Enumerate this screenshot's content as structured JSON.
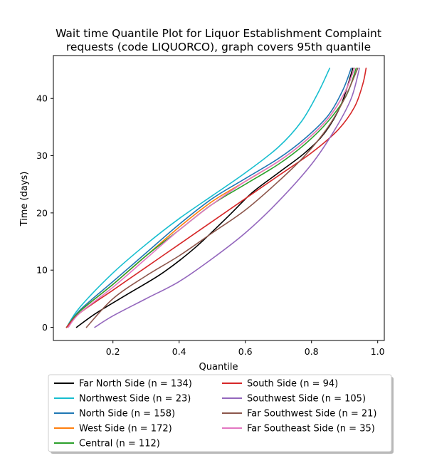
{
  "chart_data": {
    "type": "line",
    "title_line1": "Wait time Quantile Plot for Liquor Establishment Complaint",
    "title_line2": "requests (code LIQUORCO), graph covers 95th quantile",
    "xlabel": "Quantile",
    "ylabel": "Time (days)",
    "xlim": [
      0.02,
      1.02
    ],
    "ylim": [
      -2.3,
      47.5
    ],
    "xticks": [
      0.2,
      0.4,
      0.6,
      0.8,
      1.0
    ],
    "xtick_labels": [
      "0.2",
      "0.4",
      "0.6",
      "0.8",
      "1.0"
    ],
    "yticks": [
      0,
      10,
      20,
      30,
      40
    ],
    "ytick_labels": [
      "0",
      "10",
      "20",
      "30",
      "40"
    ],
    "grid": false,
    "legend_placement": "below plot, two columns",
    "series": [
      {
        "name": "Far North Side (n = 134)",
        "color": "#000000",
        "x": [
          0.09,
          0.15,
          0.25,
          0.35,
          0.45,
          0.55,
          0.62,
          0.7,
          0.78,
          0.84,
          0.89,
          0.925
        ],
        "y": [
          0,
          2.5,
          6.0,
          9.5,
          14.0,
          19.5,
          23.5,
          27.0,
          30.5,
          34.0,
          39.0,
          45.3
        ]
      },
      {
        "name": "Northwest Side (n = 23)",
        "color": "#17becf",
        "x": [
          0.06,
          0.1,
          0.2,
          0.3,
          0.4,
          0.5,
          0.6,
          0.7,
          0.77,
          0.82,
          0.855
        ],
        "y": [
          0,
          3.5,
          9.5,
          14.5,
          19.0,
          23.0,
          27.0,
          31.5,
          36.0,
          41.0,
          45.3
        ]
      },
      {
        "name": "North Side (n = 158)",
        "color": "#1f77b4",
        "x": [
          0.06,
          0.1,
          0.2,
          0.3,
          0.4,
          0.5,
          0.6,
          0.7,
          0.78,
          0.85,
          0.895,
          0.92
        ],
        "y": [
          0,
          3.0,
          8.0,
          13.0,
          18.0,
          22.5,
          26.0,
          29.5,
          33.0,
          37.0,
          41.5,
          45.3
        ]
      },
      {
        "name": "West Side (n = 172)",
        "color": "#ff7f0e",
        "x": [
          0.06,
          0.1,
          0.2,
          0.3,
          0.4,
          0.5,
          0.6,
          0.7,
          0.78,
          0.85,
          0.9,
          0.93
        ],
        "y": [
          0,
          2.8,
          7.5,
          12.5,
          17.5,
          22.0,
          25.5,
          29.0,
          32.5,
          36.5,
          41.0,
          45.3
        ]
      },
      {
        "name": "Central (n = 112)",
        "color": "#2ca02c",
        "x": [
          0.06,
          0.1,
          0.2,
          0.3,
          0.4,
          0.5,
          0.6,
          0.7,
          0.78,
          0.85,
          0.905,
          0.935
        ],
        "y": [
          0,
          2.8,
          7.5,
          12.5,
          17.0,
          21.5,
          25.0,
          28.5,
          32.0,
          36.0,
          40.5,
          45.3
        ]
      },
      {
        "name": "South Side (n = 94)",
        "color": "#d62728",
        "x": [
          0.06,
          0.1,
          0.2,
          0.3,
          0.4,
          0.5,
          0.6,
          0.7,
          0.8,
          0.88,
          0.93,
          0.955,
          0.965
        ],
        "y": [
          0,
          2.5,
          6.5,
          10.5,
          14.5,
          18.5,
          22.5,
          26.5,
          30.5,
          34.5,
          38.5,
          42.5,
          45.3
        ]
      },
      {
        "name": "Southwest Side (n = 105)",
        "color": "#9467bd",
        "x": [
          0.145,
          0.2,
          0.3,
          0.4,
          0.5,
          0.6,
          0.7,
          0.8,
          0.87,
          0.92,
          0.945
        ],
        "y": [
          0,
          2.0,
          5.0,
          8.0,
          12.0,
          16.5,
          22.0,
          28.5,
          34.5,
          40.0,
          45.3
        ]
      },
      {
        "name": "Far Southwest Side (n = 21)",
        "color": "#8c564b",
        "x": [
          0.12,
          0.2,
          0.3,
          0.4,
          0.5,
          0.6,
          0.7,
          0.78,
          0.85,
          0.9,
          0.94
        ],
        "y": [
          0,
          5.0,
          9.0,
          12.5,
          16.5,
          20.5,
          25.5,
          30.0,
          35.0,
          40.0,
          45.3
        ]
      },
      {
        "name": "Far Southeast Side (n = 35)",
        "color": "#e377c2",
        "x": [
          0.065,
          0.1,
          0.2,
          0.3,
          0.4,
          0.5,
          0.6,
          0.7,
          0.78,
          0.85,
          0.9,
          0.93
        ],
        "y": [
          0,
          2.5,
          7.0,
          12.0,
          17.0,
          21.5,
          25.5,
          29.0,
          32.5,
          36.5,
          41.0,
          45.3
        ]
      }
    ]
  }
}
